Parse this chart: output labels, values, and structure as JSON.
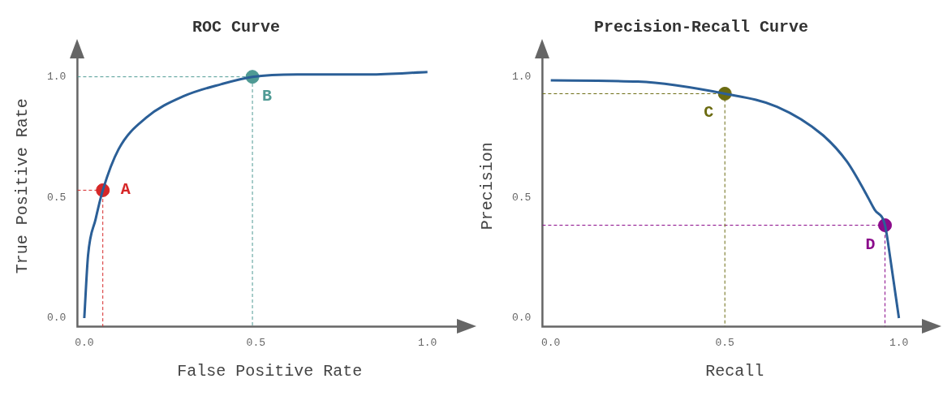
{
  "chart_data": [
    {
      "type": "line",
      "title": "ROC Curve",
      "xlabel": "False Positive Rate",
      "ylabel": "True Positive Rate",
      "xlim": [
        -0.02,
        1.1
      ],
      "ylim": [
        -0.035,
        1.13
      ],
      "xticks": [
        {
          "value": 0,
          "label": "0.0"
        },
        {
          "value": 0.5,
          "label": "0.5"
        },
        {
          "value": 1,
          "label": "1.0"
        }
      ],
      "yticks": [
        {
          "value": 0,
          "label": "0.0"
        },
        {
          "value": 0.5,
          "label": "0.5"
        },
        {
          "value": 1,
          "label": "1.0"
        }
      ],
      "grid": false,
      "legend": false,
      "series": [
        {
          "type": "line",
          "color": "#2b5f97",
          "x": [
            0,
            0.011,
            0.033,
            0.054,
            0.1,
            0.18,
            0.29,
            0.4,
            0.49,
            0.62,
            0.83,
            1.0
          ],
          "values": [
            0,
            0.26,
            0.41,
            0.53,
            0.7,
            0.83,
            0.92,
            0.97,
            1.0,
            1.01,
            1.01,
            1.02
          ]
        },
        {
          "type": "line",
          "line_style": "dashed",
          "color": "#d62728",
          "x": [
            -0.02,
            0.054,
            0.054
          ],
          "values": [
            0.53,
            0.53,
            -0.035
          ]
        },
        {
          "type": "line",
          "line_style": "dashed",
          "color": "#4f9a94",
          "x": [
            -0.02,
            0.49,
            0.49
          ],
          "values": [
            1.0,
            1.0,
            -0.035
          ]
        },
        {
          "type": "scatter",
          "color": "#d62728",
          "x": [
            0.054
          ],
          "values": [
            0.53
          ]
        },
        {
          "type": "scatter",
          "color": "#4f9a94",
          "x": [
            0.49
          ],
          "values": [
            1.0
          ]
        }
      ],
      "annotations": [
        {
          "text": "A",
          "x": 0.054,
          "y": 0.53
        },
        {
          "text": "B",
          "x": 0.49,
          "y": 1.0
        }
      ]
    },
    {
      "type": "line",
      "title": "Precision-Recall Curve",
      "xlabel": "Recall",
      "ylabel": "Precision",
      "xlim": [
        -0.024,
        1.08
      ],
      "ylim": [
        -0.035,
        1.13
      ],
      "xticks": [
        {
          "value": 0,
          "label": "0.0"
        },
        {
          "value": 0.5,
          "label": "0.5"
        },
        {
          "value": 1,
          "label": "1.0"
        }
      ],
      "yticks": [
        {
          "value": 0,
          "label": "0.0"
        },
        {
          "value": 0.5,
          "label": "0.5"
        },
        {
          "value": 1,
          "label": "1.0"
        }
      ],
      "grid": false,
      "legend": false,
      "series": [
        {
          "type": "line",
          "color": "#2b5f97",
          "x": [
            0,
            0.25,
            0.5,
            0.65,
            0.78,
            0.85,
            0.9,
            0.93,
            0.96,
            0.975,
            0.99,
            1.0
          ],
          "values": [
            0.985,
            0.98,
            0.93,
            0.876,
            0.76,
            0.65,
            0.53,
            0.45,
            0.385,
            0.25,
            0.1,
            0
          ]
        },
        {
          "type": "line",
          "line_style": "dashed",
          "color": "#6b6b10",
          "x": [
            -0.024,
            0.5,
            0.5
          ],
          "values": [
            0.93,
            0.93,
            -0.035
          ]
        },
        {
          "type": "line",
          "line_style": "dashed",
          "color": "#8b0a8b",
          "x": [
            -0.024,
            0.96,
            0.96
          ],
          "values": [
            0.385,
            0.385,
            -0.035
          ]
        },
        {
          "type": "scatter",
          "color": "#6b6b10",
          "x": [
            0.5
          ],
          "values": [
            0.93
          ]
        },
        {
          "type": "scatter",
          "color": "#8b0a8b",
          "x": [
            0.96
          ],
          "values": [
            0.385
          ]
        }
      ],
      "annotations": [
        {
          "text": "C",
          "x": 0.5,
          "y": 0.93
        },
        {
          "text": "D",
          "x": 0.96,
          "y": 0.385
        }
      ]
    }
  ]
}
